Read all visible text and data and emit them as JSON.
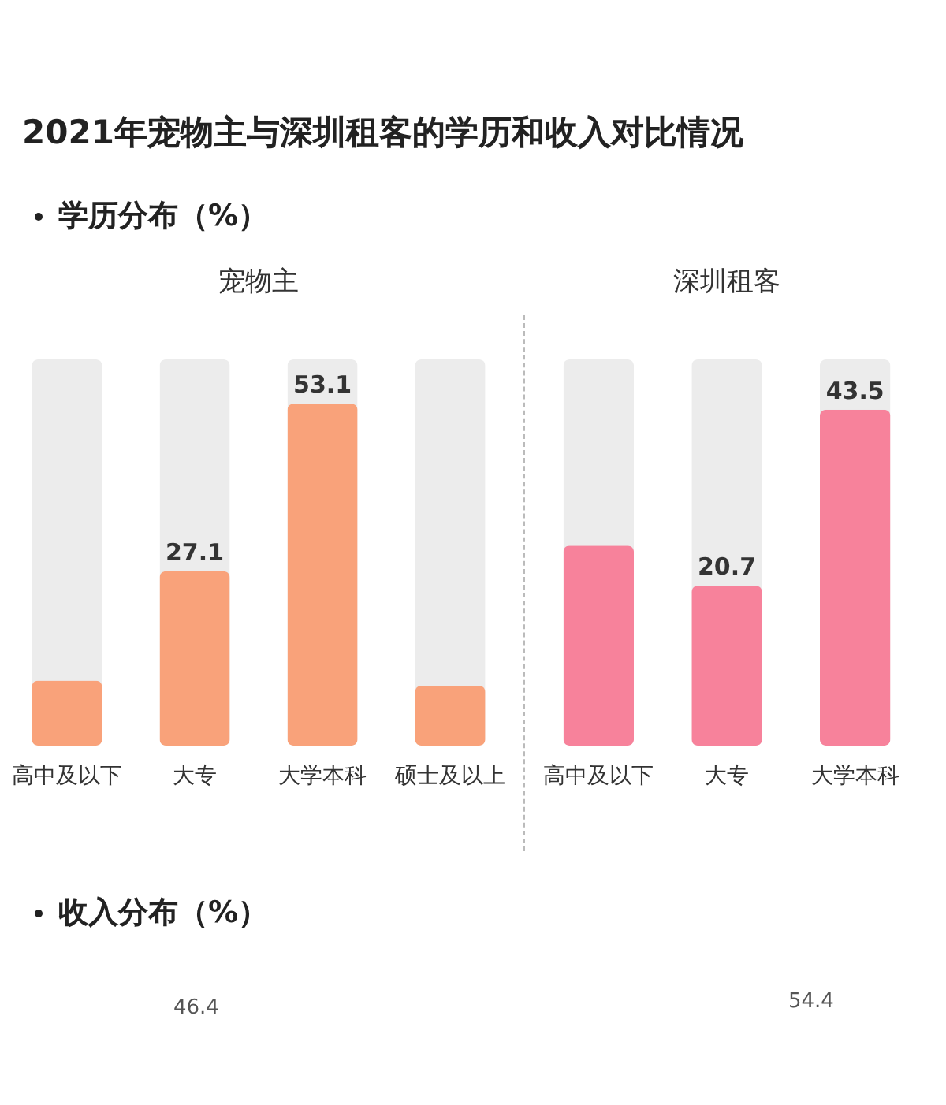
{
  "chart_data": [
    {
      "type": "other",
      "title": "2021年宠物主与深圳租客的学历和收入对比情况",
      "subtitle": "学历分布（%）"
    },
    {
      "type": "bar",
      "title": "宠物主",
      "categories": [
        "高中及以下",
        "大专",
        "大学本科",
        "硕士及以上"
      ],
      "values": [
        10.1,
        27.1,
        53.1,
        9.3
      ],
      "value_labels": [
        null,
        "27.1",
        "53.1",
        null
      ],
      "color": "#f9a27a",
      "ylim": [
        0,
        60
      ]
    },
    {
      "type": "bar",
      "title": "深圳租客",
      "categories": [
        "高中及以下",
        "大专",
        "大学本科"
      ],
      "values": [
        25.9,
        20.7,
        43.5
      ],
      "value_labels": [
        null,
        "20.7",
        "43.5"
      ],
      "color": "#f7829b",
      "ylim": [
        0,
        50
      ]
    },
    {
      "type": "other",
      "title": "收入分布（%）",
      "annotations": [
        "46.4",
        "54.4"
      ]
    }
  ]
}
